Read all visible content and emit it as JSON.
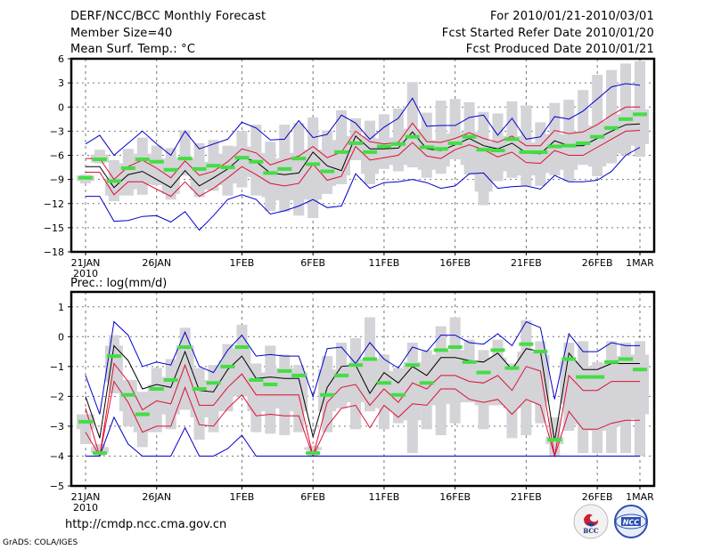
{
  "header": {
    "title": "DERF/NCC/BCC Monthly Forecast",
    "member_size": "Member Size=40",
    "variable": "Mean Surf. Temp.: °C",
    "period": "For 2010/01/21-2010/03/01",
    "started": "Fcst Started Refer Date 2010/01/20",
    "produced": "Fcst Produced Date 2010/01/21"
  },
  "footer": {
    "url": "http://cmdp.ncc.cma.gov.cn",
    "credit": "GrADS: COLA/IGES",
    "logos": [
      "BCC",
      "NCC"
    ]
  },
  "colors": {
    "spread_outer": "#0000cc",
    "spread_inner": "#dd1133",
    "mean": "#000000",
    "observed": "#44dd44",
    "members_box": "#d3d3d8",
    "grid": "#777777"
  },
  "chart_data": [
    {
      "type": "line",
      "title": "Mean Surf. Temp.: °C",
      "xlabel": "",
      "ylabel": "",
      "ylim": [
        -18,
        6
      ],
      "yticks": [
        6,
        3,
        0,
        -3,
        -6,
        -9,
        -12,
        -15,
        -18
      ],
      "xtick_labels": [
        {
          "day": 0,
          "label": "21JAN",
          "sub": "2010"
        },
        {
          "day": 5,
          "label": "26JAN"
        },
        {
          "day": 11,
          "label": "1FEB"
        },
        {
          "day": 16,
          "label": "6FEB"
        },
        {
          "day": 21,
          "label": "11FEB"
        },
        {
          "day": 26,
          "label": "16FEB"
        },
        {
          "day": 31,
          "label": "21FEB"
        },
        {
          "day": 36,
          "label": "26FEB"
        },
        {
          "day": 39,
          "label": "1MAR"
        }
      ],
      "grid": true,
      "x_days": 40,
      "series": [
        {
          "name": "max",
          "color": "#0000cc",
          "values": [
            -4.6,
            -3.5,
            -6,
            -4.5,
            -3,
            -4.6,
            -6,
            -3,
            -5.2,
            -4.6,
            -4,
            -1.9,
            -2.6,
            -4.1,
            -4,
            -1.7,
            -3.8,
            -3.4,
            -1,
            -2,
            -4,
            -2.5,
            -1.4,
            1.1,
            -2.4,
            -2.3,
            -2.3,
            -1.3,
            -1,
            -3.5,
            -1.4,
            -4,
            -3.7,
            -1.2,
            -1.5,
            -0.5,
            1,
            2.5,
            2.9,
            2.7
          ]
        },
        {
          "name": "upper",
          "color": "#dd1133",
          "values": [
            -6.4,
            -6.4,
            -9,
            -7.4,
            -6.6,
            -7.6,
            -8.8,
            -6.7,
            -8.5,
            -8,
            -6.8,
            -5.2,
            -5.7,
            -7.2,
            -6.6,
            -6.1,
            -4.9,
            -6.3,
            -5.6,
            -3,
            -4.3,
            -4.6,
            -4.4,
            -2,
            -4.3,
            -4.4,
            -3.9,
            -3.2,
            -3.9,
            -4.4,
            -3.6,
            -4.8,
            -4.8,
            -2.9,
            -3.3,
            -3.1,
            -2.2,
            -1,
            0,
            0
          ]
        },
        {
          "name": "mean",
          "color": "#000000",
          "values": [
            -7.4,
            -7.4,
            -10,
            -8.4,
            -8,
            -9,
            -10,
            -7.9,
            -9.8,
            -8.8,
            -7.7,
            -6.2,
            -6.8,
            -8.2,
            -8.4,
            -8.2,
            -5.6,
            -7.3,
            -7.9,
            -3.6,
            -5.2,
            -5.2,
            -5.1,
            -3.1,
            -5.2,
            -5.4,
            -4.7,
            -3.9,
            -4.8,
            -5.2,
            -4.5,
            -5.7,
            -5.8,
            -4.2,
            -4.8,
            -4.8,
            -3.9,
            -3,
            -2.2,
            -2.1
          ]
        },
        {
          "name": "lower",
          "color": "#dd1133",
          "values": [
            -8.1,
            -8.1,
            -10.9,
            -9.3,
            -9.3,
            -10.2,
            -11.1,
            -9.3,
            -11.1,
            -10.1,
            -8.8,
            -7.4,
            -8.4,
            -9.5,
            -9.8,
            -9.5,
            -7.1,
            -9.1,
            -8.6,
            -4.9,
            -6.6,
            -6.3,
            -6,
            -4.4,
            -6.1,
            -6.4,
            -5.3,
            -4.7,
            -5.3,
            -6.2,
            -5.6,
            -6.9,
            -7,
            -5.4,
            -6,
            -6,
            -5,
            -4,
            -3,
            -2.9
          ]
        },
        {
          "name": "min",
          "color": "#0000cc",
          "values": [
            -11.1,
            -11.1,
            -14.2,
            -14.1,
            -13.6,
            -13.5,
            -14.3,
            -13,
            -15.3,
            -13.5,
            -11.5,
            -10.9,
            -11.5,
            -13.3,
            -12.9,
            -12.3,
            -11.5,
            -12.5,
            -12.3,
            -8.3,
            -10.1,
            -9.4,
            -9.3,
            -9,
            -9.4,
            -10.1,
            -9.8,
            -8.3,
            -8.2,
            -10.1,
            -9.9,
            -9.8,
            -10.2,
            -8.5,
            -9.3,
            -9.3,
            -9.1,
            -8,
            -6,
            -5
          ]
        },
        {
          "name": "observed",
          "color": "#44dd44",
          "values": [
            -8.8,
            -6.5,
            -9.2,
            -7.6,
            -6.5,
            -6.8,
            -7.8,
            -6.4,
            -7.7,
            -7.3,
            -7.5,
            -6.3,
            -6.8,
            -8.2,
            -7.7,
            -6.4,
            -7.1,
            -8,
            -5.6,
            -4.5,
            -5.6,
            -4.9,
            -4.6,
            -3.7,
            -5,
            -5.2,
            -4.5,
            -3.7,
            -5.3,
            -5.4,
            -4,
            -5.6,
            -5.6,
            -4.9,
            -4.8,
            -4.5,
            -3.7,
            -2.6,
            -1.5,
            -0.9
          ]
        }
      ],
      "members_box": {
        "min": [
          -9.5,
          -7,
          -11.7,
          -11,
          -10.9,
          -9.7,
          -11.5,
          -8.5,
          -11.2,
          -10.4,
          -11,
          -10,
          -11,
          -12.9,
          -13,
          -13.5,
          -13.8,
          -10.8,
          -9.6,
          -6.6,
          -9.6,
          -7.7,
          -8,
          -7.5,
          -8.8,
          -8.3,
          -6.5,
          -8.4,
          -12.2,
          -9.2,
          -8.8,
          -9.8,
          -9.8,
          -8.5,
          -9.2,
          -7.2,
          -8.6,
          -7,
          -6,
          -6.2
        ],
        "q1": [
          -9.2,
          -6.9,
          -11,
          -10.2,
          -9.6,
          -9.3,
          -10.8,
          -7.6,
          -10.3,
          -9.7,
          -9.5,
          -7.8,
          -8.7,
          -11.2,
          -11.6,
          -11.3,
          -11.5,
          -9.8,
          -8.5,
          -5.8,
          -8.3,
          -6.6,
          -7.2,
          -6.3,
          -7.8,
          -7.4,
          -5.9,
          -7.2,
          -10.5,
          -8,
          -7.4,
          -8.5,
          -8.2,
          -7.1,
          -7.8,
          -6.4,
          -7.4,
          -5.8,
          -4.8,
          -4.6
        ],
        "q3": [
          -8.5,
          -5.9,
          -8.9,
          -7,
          -5.8,
          -6.4,
          -7.5,
          -6.3,
          -7.3,
          -6.8,
          -5.8,
          -4.9,
          -5.7,
          -6.5,
          -6.4,
          -5.7,
          -5.3,
          -6.8,
          -4.1,
          -3.6,
          -4.2,
          -3.9,
          -3.8,
          -2.7,
          -4.1,
          -4.2,
          -3.3,
          -3.1,
          -4.3,
          -4.5,
          -3.6,
          -4.4,
          -4.9,
          -3.4,
          -3.5,
          -3,
          -2.3,
          -1.7,
          -0.9,
          -0.3
        ],
        "max": [
          -8.4,
          -5.3,
          -6.6,
          -5.2,
          -3.8,
          -4.8,
          -5.1,
          -2.9,
          -4.5,
          -4.1,
          -4.8,
          -3,
          -2.2,
          -4.3,
          -2.2,
          -2,
          -1.3,
          -2.9,
          -0.4,
          -1.4,
          -1.7,
          -0.9,
          -0.2,
          3.1,
          -0.7,
          0.8,
          1,
          0.6,
          -0.6,
          -0.8,
          0.7,
          0.2,
          -1.9,
          0.5,
          0.9,
          2.1,
          4,
          4.6,
          5.4,
          5.7
        ]
      }
    },
    {
      "type": "line",
      "title": "Prec.: log(mm/d)",
      "xlabel": "",
      "ylabel": "",
      "ylim": [
        -5,
        1.5
      ],
      "yticks": [
        1,
        0,
        -1,
        -2,
        -3,
        -4,
        -5
      ],
      "xtick_labels": [
        {
          "day": 0,
          "label": "21JAN",
          "sub": "2010"
        },
        {
          "day": 5,
          "label": "26JAN"
        },
        {
          "day": 11,
          "label": "1FEB"
        },
        {
          "day": 16,
          "label": "6FEB"
        },
        {
          "day": 21,
          "label": "11FEB"
        },
        {
          "day": 26,
          "label": "16FEB"
        },
        {
          "day": 31,
          "label": "21FEB"
        },
        {
          "day": 36,
          "label": "26FEB"
        },
        {
          "day": 39,
          "label": "1MAR"
        }
      ],
      "grid": true,
      "x_days": 40,
      "series": [
        {
          "name": "max",
          "color": "#0000cc",
          "values": [
            -1.3,
            -2.6,
            0.5,
            0.05,
            -1,
            -0.85,
            -0.95,
            0.15,
            -1,
            -1.2,
            -0.45,
            0.05,
            -0.65,
            -0.6,
            -0.65,
            -0.65,
            -2,
            -0.4,
            -0.35,
            -0.9,
            -0.2,
            -0.75,
            -1.05,
            -0.35,
            -0.5,
            0.05,
            0.05,
            -0.2,
            -0.25,
            0.1,
            -0.3,
            0.5,
            0.3,
            -2.1,
            0.1,
            -0.5,
            -0.5,
            -0.2,
            -0.3,
            -0.3
          ]
        },
        {
          "name": "upper_mean",
          "color": "#000000",
          "values": [
            -2,
            -3.4,
            -0.3,
            -0.8,
            -1.75,
            -1.6,
            -1.7,
            -0.5,
            -1.8,
            -1.85,
            -1.1,
            -0.65,
            -1.4,
            -1.35,
            -1.4,
            -1.4,
            -3.35,
            -1.7,
            -1,
            -0.95,
            -1.9,
            -1.2,
            -1.55,
            -1,
            -1.3,
            -0.7,
            -0.7,
            -0.8,
            -0.85,
            -0.55,
            -1.1,
            -0.4,
            -0.5,
            -3.5,
            -0.55,
            -1.1,
            -1.1,
            -0.9,
            -0.9,
            -0.9
          ]
        },
        {
          "name": "upper",
          "color": "#dd1133",
          "values": [
            -2.4,
            -4,
            -0.9,
            -1.5,
            -2.45,
            -2.15,
            -2.25,
            -0.95,
            -2.3,
            -2.3,
            -1.7,
            -1.25,
            -1.95,
            -1.95,
            -1.95,
            -1.95,
            -4,
            -2.2,
            -1.7,
            -1.6,
            -2.3,
            -1.75,
            -2.2,
            -1.55,
            -1.75,
            -1.3,
            -1.3,
            -1.5,
            -1.55,
            -1.3,
            -1.8,
            -1,
            -1.15,
            -4,
            -1.3,
            -1.8,
            -1.8,
            -1.5,
            -1.5,
            -1.5
          ]
        },
        {
          "name": "lower",
          "color": "#dd1133",
          "values": [
            -3.2,
            -4,
            -1.5,
            -2.2,
            -3.2,
            -3,
            -3,
            -1.7,
            -2.95,
            -3,
            -2.4,
            -1.95,
            -2.65,
            -2.6,
            -2.65,
            -2.65,
            -4,
            -3,
            -2.4,
            -2.3,
            -3.05,
            -2.3,
            -2.7,
            -2.25,
            -2.3,
            -1.75,
            -1.75,
            -2.1,
            -2.2,
            -2.1,
            -2.6,
            -2.1,
            -2.3,
            -4,
            -2.5,
            -3.1,
            -3.1,
            -2.9,
            -2.8,
            -2.8
          ]
        },
        {
          "name": "min",
          "color": "#0000cc",
          "values": [
            -4,
            -4,
            -2.7,
            -3.6,
            -4,
            -4,
            -4,
            -3.05,
            -4,
            -4,
            -3.75,
            -3.3,
            -4,
            -4,
            -4,
            -4,
            -4,
            -4,
            -4,
            -4,
            -4,
            -4,
            -4,
            -4,
            -4,
            -4,
            -4,
            -4,
            -4,
            -4,
            -4,
            -4,
            -4,
            -4,
            -4,
            -4,
            -4,
            -4,
            -4,
            -4
          ]
        },
        {
          "name": "observed",
          "color": "#44dd44",
          "values": [
            -2.85,
            -3.9,
            -0.65,
            -1.95,
            -2.6,
            -1.75,
            -1.45,
            -0.35,
            -1.75,
            -1.55,
            -1,
            -0.35,
            -1.45,
            -1.6,
            -1.15,
            -1.3,
            -3.9,
            -1.95,
            -1.3,
            -0.95,
            -0.75,
            -1.55,
            -1.95,
            -0.95,
            -1.55,
            -0.45,
            -0.35,
            -0.85,
            -1.2,
            -0.45,
            -1.05,
            -0.25,
            -0.5,
            -3.45,
            -0.75,
            -1.35,
            -1.35,
            -0.85,
            -0.75,
            -1.1
          ]
        }
      ],
      "members_box": {
        "min": [
          -3.6,
          -4,
          -1.9,
          -3,
          -3.7,
          -3.2,
          -3.1,
          -2.45,
          -3.45,
          -3.2,
          -2.5,
          -2,
          -3.2,
          -3.25,
          -3.3,
          -3.2,
          -4,
          -3.2,
          -2.4,
          -3.1,
          -2.5,
          -3.1,
          -2.9,
          -3.9,
          -3.1,
          -3.3,
          -2.9,
          -2.2,
          -3.1,
          -2.3,
          -3.4,
          -3.3,
          -2.9,
          -4,
          -3.15,
          -3.9,
          -3.9,
          -3.9,
          -3.9,
          -4
        ],
        "q1": [
          -3.1,
          -3.9,
          -1.5,
          -2.5,
          -3.2,
          -2.6,
          -2.6,
          -1.9,
          -2.7,
          -2.5,
          -2,
          -1.55,
          -2.5,
          -2.3,
          -2.4,
          -2.5,
          -3.8,
          -2.5,
          -1.95,
          -2.2,
          -1.9,
          -2.4,
          -2.5,
          -2.8,
          -2.3,
          -2.25,
          -2.2,
          -1.8,
          -2.3,
          -2.1,
          -2.4,
          -2.05,
          -2.2,
          -3.6,
          -2.25,
          -2.95,
          -3.15,
          -3,
          -2.75,
          -2.6
        ],
        "q3": [
          -2.6,
          -3.7,
          -0.3,
          -1.45,
          -2.3,
          -1.6,
          -1.35,
          -0.3,
          -1.8,
          -1.45,
          -0.8,
          -0.4,
          -1.2,
          -1.2,
          -1.05,
          -1.2,
          -3.7,
          -1.1,
          -1.2,
          -0.95,
          -0.75,
          -1.15,
          -1.5,
          -0.85,
          -1.15,
          -0.6,
          -0.45,
          -0.85,
          -1.15,
          -0.7,
          -1.1,
          -0.5,
          -0.6,
          -3.35,
          -0.8,
          -1,
          -1.2,
          -0.9,
          -0.65,
          -0.6
        ],
        "max": [
          -2.6,
          -3.6,
          0.05,
          -1.45,
          -1.85,
          -1.05,
          -0.75,
          0.3,
          -1.05,
          -0.95,
          -0.25,
          0.4,
          -0.9,
          -0.3,
          -0.6,
          -0.95,
          -3.65,
          -0.65,
          -0.2,
          -0.05,
          0.65,
          -0.6,
          -1.05,
          -0.2,
          -0.45,
          0.35,
          0.65,
          -0.1,
          -0.45,
          -0.1,
          -0.9,
          0.55,
          -0.15,
          -2.7,
          -0.2,
          -0.15,
          -0.85,
          -0.15,
          -0.2,
          -0.15
        ]
      }
    }
  ]
}
